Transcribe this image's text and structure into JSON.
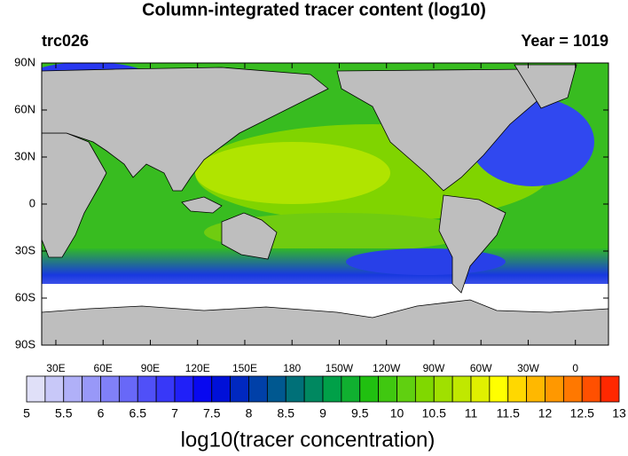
{
  "header": {
    "title": "Column-integrated tracer content (log10)",
    "left": "trc026",
    "right": "Year = 1019"
  },
  "map": {
    "lat_labels": [
      "90N",
      "60N",
      "30N",
      "0",
      "30S",
      "60S",
      "90S"
    ],
    "lon_labels": [
      "30E",
      "60E",
      "90E",
      "120E",
      "150E",
      "180",
      "150W",
      "120W",
      "90W",
      "60W",
      "30W",
      "0"
    ]
  },
  "colorbar": {
    "title": "log10(tracer concentration)",
    "range": [
      5,
      13
    ],
    "ticks": [
      5,
      5.5,
      6,
      6.5,
      7,
      7.5,
      8,
      8.5,
      9,
      9.5,
      10,
      10.5,
      11,
      11.5,
      12,
      12.5,
      13
    ],
    "colors": [
      "#e0e0f8",
      "#c8c8f8",
      "#b0b0f8",
      "#9898f8",
      "#8080f8",
      "#6868f8",
      "#5050f8",
      "#3838f8",
      "#2020f8",
      "#0808f0",
      "#0010d8",
      "#0028c0",
      "#0040a8",
      "#005890",
      "#007078",
      "#008860",
      "#00a048",
      "#10b030",
      "#20c010",
      "#40c810",
      "#60d010",
      "#80d800",
      "#a0e000",
      "#c0e800",
      "#e0f000",
      "#ffff00",
      "#ffd800",
      "#ffb800",
      "#ff9800",
      "#ff7800",
      "#ff5000",
      "#ff2800"
    ]
  }
}
